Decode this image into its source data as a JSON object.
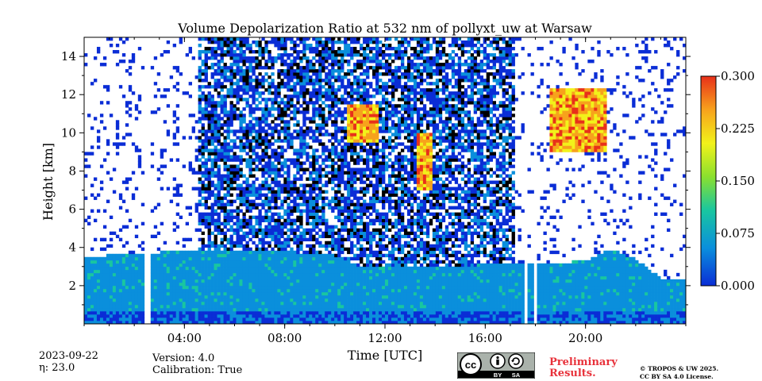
{
  "chart_data": {
    "type": "heatmap",
    "title": "Volume Depolarization Ratio at 532 nm of pollyxt_uw at Warsaw",
    "xlabel": "Time [UTC]",
    "ylabel": "Height [km]",
    "xlim": [
      0,
      24
    ],
    "ylim": [
      0,
      15
    ],
    "xticks": [
      {
        "value": 4,
        "label": "04:00"
      },
      {
        "value": 8,
        "label": "08:00"
      },
      {
        "value": 12,
        "label": "12:00"
      },
      {
        "value": 16,
        "label": "16:00"
      },
      {
        "value": 20,
        "label": "20:00"
      }
    ],
    "yticks": [
      {
        "value": 2,
        "label": "2"
      },
      {
        "value": 4,
        "label": "4"
      },
      {
        "value": 6,
        "label": "6"
      },
      {
        "value": 8,
        "label": "8"
      },
      {
        "value": 10,
        "label": "10"
      },
      {
        "value": 12,
        "label": "12"
      },
      {
        "value": 14,
        "label": "14"
      }
    ],
    "colorbar": {
      "min": 0.0,
      "max": 0.3,
      "ticks": [
        {
          "value": 0.0,
          "label": "0.000"
        },
        {
          "value": 0.075,
          "label": "0.075"
        },
        {
          "value": 0.15,
          "label": "0.150"
        },
        {
          "value": 0.225,
          "label": "0.225"
        },
        {
          "value": 0.3,
          "label": "0.300"
        }
      ],
      "colors": [
        "#0a2dd6",
        "#0a8fdc",
        "#19c6a0",
        "#8ae02e",
        "#f2f21a",
        "#f7a21c",
        "#e8301a"
      ]
    },
    "boundary_layer_top_km": [
      [
        0,
        3.5
      ],
      [
        2,
        3.7
      ],
      [
        4,
        3.8
      ],
      [
        6,
        3.9
      ],
      [
        8,
        3.8
      ],
      [
        10,
        3.6
      ],
      [
        11,
        3.0
      ],
      [
        12,
        3.0
      ],
      [
        14,
        3.0
      ],
      [
        16,
        3.1
      ],
      [
        17,
        3.2
      ],
      [
        18,
        3.1
      ],
      [
        20,
        3.3
      ],
      [
        21,
        3.9
      ],
      [
        22,
        3.4
      ],
      [
        23,
        2.4
      ],
      [
        24,
        2.4
      ]
    ],
    "cirrus_events": [
      {
        "start": 10.5,
        "end": 11.7,
        "base_km": 9.5,
        "top_km": 11.5
      },
      {
        "start": 13.3,
        "end": 13.9,
        "base_km": 7.0,
        "top_km": 10.0
      },
      {
        "start": 18.6,
        "end": 20.8,
        "base_km": 9.0,
        "top_km": 12.3
      }
    ],
    "no_data_periods": [
      [
        2.45,
        2.6
      ],
      [
        17.5,
        17.65
      ],
      [
        17.95,
        18.05
      ]
    ]
  },
  "footer": {
    "date": "2023-09-22",
    "eta_label": "η: 23.0",
    "version": "Version: 4.0",
    "calibration": "Calibration: True",
    "preliminary_line1": "Preliminary",
    "preliminary_line2": "Results.",
    "copyright_line1": "© TROPOS & UW 2025.",
    "copyright_line2": "CC BY SA 4.0 License.",
    "license_badge": {
      "cc": "cc",
      "by": "BY",
      "sa": "SA"
    }
  }
}
